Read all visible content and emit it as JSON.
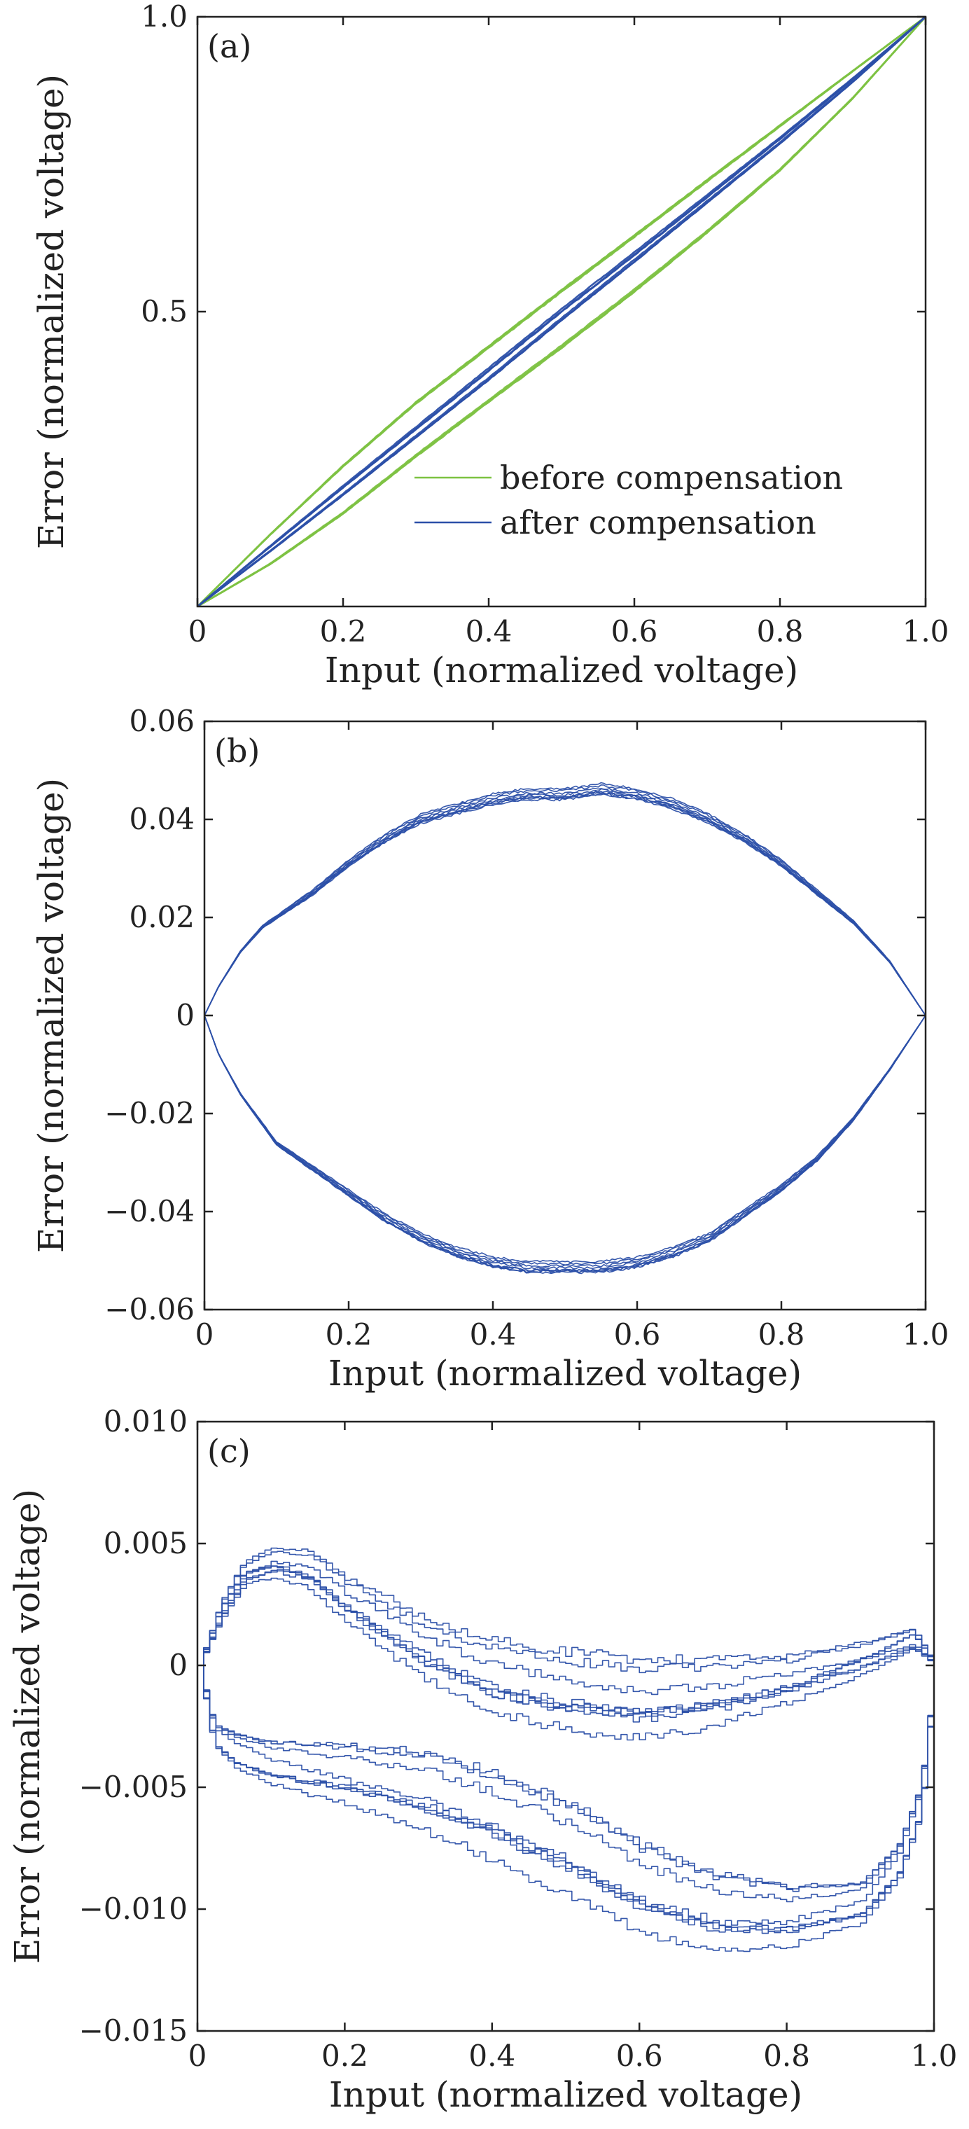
{
  "chart_data": [
    {
      "panel": "(a)",
      "type": "line",
      "xlabel": "Input (normalized voltage)",
      "ylabel": "Error (normalized voltage)",
      "xlim": [
        0,
        1.0
      ],
      "ylim": [
        0,
        1.0
      ],
      "xticks": [
        0,
        0.2,
        0.4,
        0.6,
        0.8,
        1.0
      ],
      "xtick_labels": [
        "0",
        "0.2",
        "0.4",
        "0.6",
        "0.8",
        "1.0"
      ],
      "yticks": [
        0.5,
        1.0
      ],
      "ytick_labels": [
        "0.5",
        "1.0"
      ],
      "legend_position": "lower-right",
      "series": [
        {
          "name": "before compensation",
          "color": "#7dc242",
          "segments": [
            {
              "x": [
                0,
                0.1,
                0.2,
                0.3,
                0.4,
                0.5,
                0.6,
                0.7,
                0.8,
                0.9,
                1.0
              ],
              "y": [
                0,
                0.122,
                0.238,
                0.345,
                0.44,
                0.535,
                0.628,
                0.722,
                0.815,
                0.908,
                1.0
              ]
            },
            {
              "x": [
                0,
                0.1,
                0.2,
                0.3,
                0.4,
                0.5,
                0.6,
                0.7,
                0.8,
                0.9,
                1.0
              ],
              "y": [
                0,
                0.072,
                0.158,
                0.255,
                0.348,
                0.44,
                0.535,
                0.635,
                0.74,
                0.862,
                1.0
              ]
            }
          ]
        },
        {
          "name": "after compensation",
          "color": "#2b4fa8",
          "segments": [
            {
              "x": [
                0,
                0.1,
                0.2,
                0.3,
                0.4,
                0.5,
                0.6,
                0.7,
                0.8,
                0.9,
                1.0
              ],
              "y": [
                0,
                0.102,
                0.203,
                0.302,
                0.402,
                0.502,
                0.598,
                0.696,
                0.794,
                0.895,
                1.0
              ]
            },
            {
              "x": [
                0,
                0.1,
                0.2,
                0.3,
                0.4,
                0.5,
                0.6,
                0.7,
                0.8,
                0.9,
                1.0
              ],
              "y": [
                0,
                0.094,
                0.19,
                0.288,
                0.386,
                0.487,
                0.586,
                0.686,
                0.786,
                0.89,
                1.0
              ]
            }
          ]
        }
      ]
    },
    {
      "panel": "(b)",
      "type": "line",
      "xlabel": "Input (normalized voltage)",
      "ylabel": "Error (normalized voltage)",
      "xlim": [
        0,
        1.0
      ],
      "ylim": [
        -0.06,
        0.06
      ],
      "xticks": [
        0,
        0.2,
        0.4,
        0.6,
        0.8,
        1.0
      ],
      "xtick_labels": [
        "0",
        "0.2",
        "0.4",
        "0.6",
        "0.8",
        "1.0"
      ],
      "yticks": [
        -0.06,
        -0.04,
        -0.02,
        0,
        0.02,
        0.04,
        0.06
      ],
      "ytick_labels": [
        "−0.06",
        "−0.04",
        "−0.02",
        "0",
        "0.02",
        "0.04",
        "0.06"
      ],
      "series": [
        {
          "color": "#2b4fa8",
          "segments": [
            {
              "x": [
                0,
                0.02,
                0.05,
                0.08,
                0.1,
                0.15,
                0.2,
                0.25,
                0.3,
                0.35,
                0.4,
                0.45,
                0.5,
                0.55,
                0.6,
                0.65,
                0.7,
                0.75,
                0.8,
                0.85,
                0.9,
                0.95,
                1.0
              ],
              "y": [
                0,
                0.006,
                0.013,
                0.018,
                0.02,
                0.025,
                0.031,
                0.036,
                0.04,
                0.042,
                0.044,
                0.045,
                0.045,
                0.046,
                0.045,
                0.043,
                0.04,
                0.036,
                0.031,
                0.025,
                0.019,
                0.011,
                0
              ]
            },
            {
              "x": [
                0,
                0.02,
                0.05,
                0.08,
                0.1,
                0.15,
                0.2,
                0.25,
                0.3,
                0.35,
                0.4,
                0.45,
                0.5,
                0.55,
                0.6,
                0.65,
                0.7,
                0.75,
                0.8,
                0.85,
                0.9,
                0.95,
                1.0
              ],
              "y": [
                0,
                -0.008,
                -0.016,
                -0.022,
                -0.026,
                -0.031,
                -0.036,
                -0.041,
                -0.045,
                -0.048,
                -0.05,
                -0.051,
                -0.051,
                -0.051,
                -0.05,
                -0.048,
                -0.045,
                -0.04,
                -0.035,
                -0.029,
                -0.021,
                -0.011,
                0
              ]
            }
          ]
        }
      ]
    },
    {
      "panel": "(c)",
      "type": "line",
      "xlabel": "Input (normalized voltage)",
      "ylabel": "Error (normalized voltage)",
      "xlim": [
        0,
        1.0
      ],
      "ylim": [
        -0.015,
        0.01
      ],
      "xticks": [
        0,
        0.2,
        0.4,
        0.6,
        0.8,
        1.0
      ],
      "xtick_labels": [
        "0",
        "0.2",
        "0.4",
        "0.6",
        "0.8",
        "1.0"
      ],
      "yticks": [
        -0.015,
        -0.01,
        -0.005,
        0,
        0.005,
        0.01
      ],
      "ytick_labels": [
        "−0.015",
        "−0.010",
        "−0.005",
        "0",
        "0.005",
        "0.010"
      ],
      "series": [
        {
          "color": "#2b4fa8",
          "segments": [
            {
              "x": [
                0,
                0.03,
                0.06,
                0.1,
                0.15,
                0.2,
                0.3,
                0.4,
                0.5,
                0.6,
                0.7,
                0.8,
                0.9,
                0.97,
                1.0
              ],
              "y": [
                0,
                0.0025,
                0.004,
                0.0045,
                0.0042,
                0.003,
                0.0012,
                0,
                -0.0005,
                -0.0008,
                -0.0006,
                -0.0002,
                0.0006,
                0.0014,
                0
              ]
            },
            {
              "x": [
                0,
                0.03,
                0.06,
                0.1,
                0.15,
                0.2,
                0.3,
                0.4,
                0.5,
                0.6,
                0.7,
                0.8,
                0.9,
                0.97,
                1.0
              ],
              "y": [
                0,
                0.002,
                0.0035,
                0.004,
                0.0037,
                0.0025,
                0.0006,
                -0.0008,
                -0.0014,
                -0.0018,
                -0.0015,
                -0.0008,
                0,
                0.0008,
                0
              ]
            },
            {
              "x": [
                0,
                0.02,
                0.05,
                0.1,
                0.2,
                0.3,
                0.4,
                0.5,
                0.6,
                0.7,
                0.8,
                0.9,
                0.95,
                0.98,
                1.0
              ],
              "y": [
                0,
                -0.0025,
                -0.003,
                -0.0035,
                -0.004,
                -0.0045,
                -0.0055,
                -0.0068,
                -0.0085,
                -0.0095,
                -0.0098,
                -0.0093,
                -0.0075,
                -0.005,
                0
              ]
            },
            {
              "x": [
                0,
                0.02,
                0.05,
                0.1,
                0.2,
                0.3,
                0.4,
                0.5,
                0.6,
                0.7,
                0.8,
                0.9,
                0.95,
                0.98,
                1.0
              ],
              "y": [
                0,
                -0.0032,
                -0.004,
                -0.0045,
                -0.005,
                -0.0057,
                -0.0068,
                -0.0082,
                -0.0098,
                -0.0107,
                -0.0108,
                -0.0102,
                -0.0085,
                -0.006,
                0
              ]
            }
          ]
        }
      ]
    }
  ]
}
